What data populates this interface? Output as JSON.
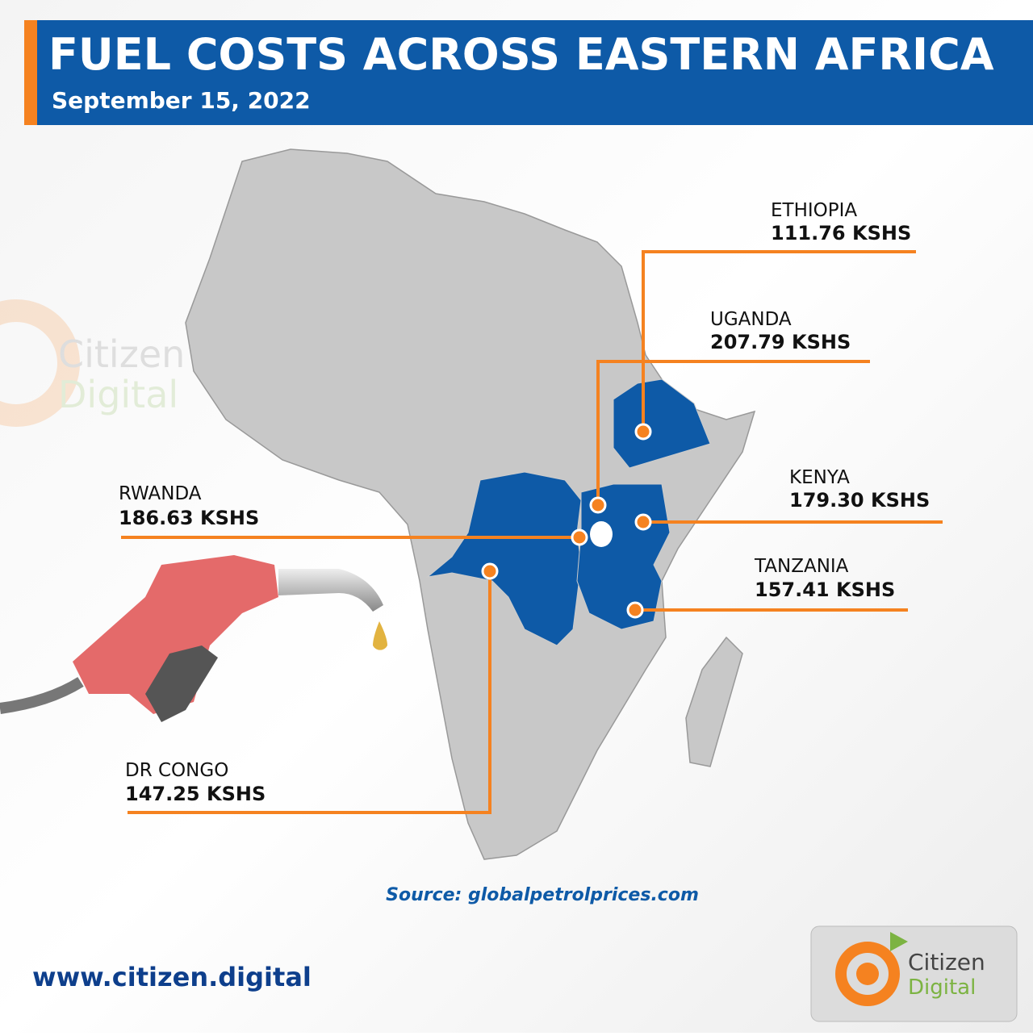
{
  "header": {
    "title": "FUEL COSTS ACROSS EASTERN AFRICA",
    "date": "September 15, 2022"
  },
  "countries": [
    {
      "name": "ETHIOPIA",
      "price": "111.76 KSHS"
    },
    {
      "name": "UGANDA",
      "price": "207.79 KSHS"
    },
    {
      "name": "KENYA",
      "price": "179.30 KSHS"
    },
    {
      "name": "RWANDA",
      "price": "186.63 KSHS"
    },
    {
      "name": "TANZANIA",
      "price": "157.41 KSHS"
    },
    {
      "name": "DR CONGO",
      "price": "147.25 KSHS"
    }
  ],
  "source": "Source: globalpetrolprices.com",
  "website": "www.citizen.digital",
  "logo": {
    "line1": "Citizen",
    "line2": "Digital"
  },
  "watermark": {
    "line1": "Citizen",
    "line2": "Digital"
  }
}
